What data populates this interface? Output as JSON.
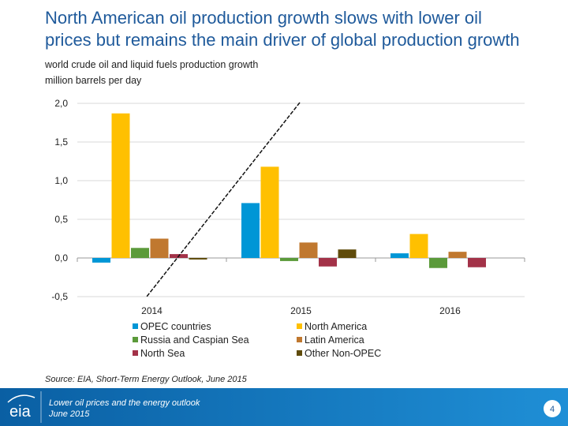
{
  "chart_data": {
    "type": "bar",
    "title": [
      "North American oil production growth slows with lower oil",
      "prices but remains the main driver of global production growth"
    ],
    "subtitle": [
      "world crude oil and liquid fuels production growth",
      "million barrels per day"
    ],
    "categories": [
      "2014",
      "2015",
      "2016"
    ],
    "series": [
      {
        "name": "OPEC countries",
        "color": "#0096d6",
        "values": [
          -0.06,
          0.71,
          0.06
        ]
      },
      {
        "name": "North America",
        "color": "#ffc000",
        "values": [
          1.87,
          1.18,
          0.31
        ]
      },
      {
        "name": "Russia and Caspian Sea",
        "color": "#5b9a3a",
        "values": [
          0.13,
          -0.04,
          -0.13
        ]
      },
      {
        "name": "Latin America",
        "color": "#c0782f",
        "values": [
          0.25,
          0.2,
          0.08
        ]
      },
      {
        "name": "North Sea",
        "color": "#a33248",
        "values": [
          0.05,
          -0.11,
          -0.12
        ]
      },
      {
        "name": "Other Non-OPEC",
        "color": "#5f4b0b",
        "values": [
          -0.02,
          0.11,
          0
        ]
      }
    ],
    "ylim": [
      -0.5,
      2.0
    ],
    "yticks": [
      {
        "value": -0.5,
        "label": "-0,5"
      },
      {
        "value": 0,
        "label": "0,0"
      },
      {
        "value": 0.5,
        "label": "0,5"
      },
      {
        "value": 1.0,
        "label": "1,0"
      },
      {
        "value": 1.5,
        "label": "1,5"
      },
      {
        "value": 2.0,
        "label": "2,0"
      }
    ],
    "grid": true,
    "source": "Source: EIA, Short-Term Energy Outlook, June 2015"
  },
  "footer": {
    "logo": "eia",
    "presentation": "Lower oil prices and the energy outlook",
    "date": "June 2015",
    "page": "4"
  }
}
